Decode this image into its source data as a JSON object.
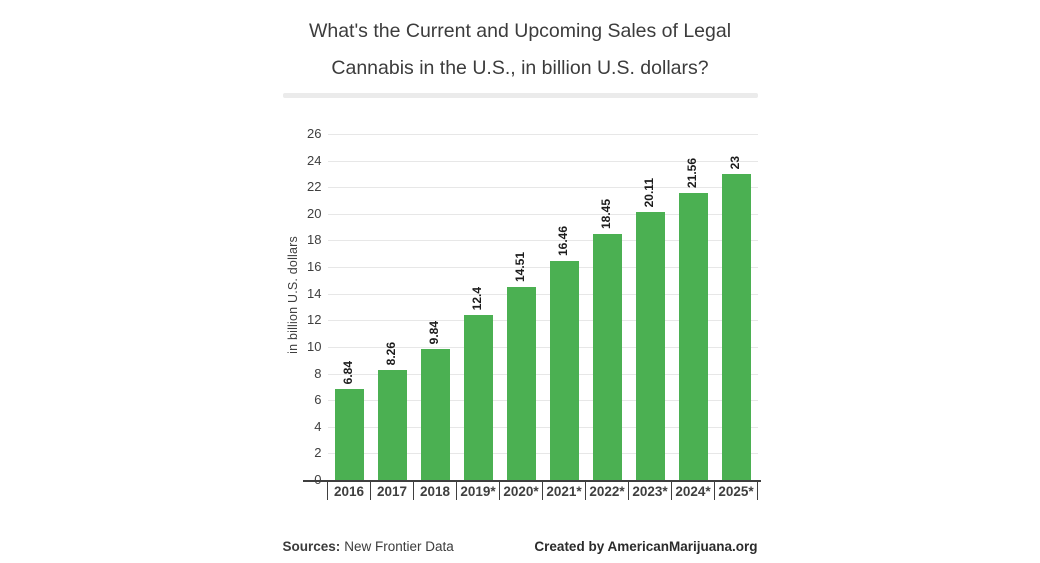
{
  "title": {
    "line1": "What's the Current and Upcoming Sales of Legal",
    "line2": "Cannabis in the U.S., in billion U.S. dollars?"
  },
  "chart_data": {
    "type": "bar",
    "title": "What's the Current and Upcoming Sales of Legal Cannabis in the U.S., in billion U.S. dollars?",
    "categories": [
      "2016",
      "2017",
      "2018",
      "2019*",
      "2020*",
      "2021*",
      "2022*",
      "2023*",
      "2024*",
      "2025*"
    ],
    "values": [
      6.84,
      8.26,
      9.84,
      12.4,
      14.51,
      16.46,
      18.45,
      20.11,
      21.56,
      23
    ],
    "value_labels": [
      "6.84",
      "8.26",
      "9.84",
      "12.4",
      "14.51",
      "16.46",
      "18.45",
      "20.11",
      "21.56",
      "23"
    ],
    "xlabel": "",
    "ylabel": "in billion U.S. dollars",
    "ylim": [
      0,
      26
    ],
    "ytick_step": 2,
    "grid": true,
    "legend": "none",
    "value_label_style": "rotated-90-above-bar",
    "colors": {
      "bar": "#4bb052",
      "gridline": "#e7e7e7",
      "axis": "#3f3f3f",
      "value_label": "#1c1c1c",
      "title_text": "#3c3c3c",
      "divider": "#ebebeb"
    }
  },
  "footer": {
    "sources_label": "Sources:",
    "sources_value": "New Frontier Data",
    "credit": "Created by AmericanMarijuana.org"
  }
}
